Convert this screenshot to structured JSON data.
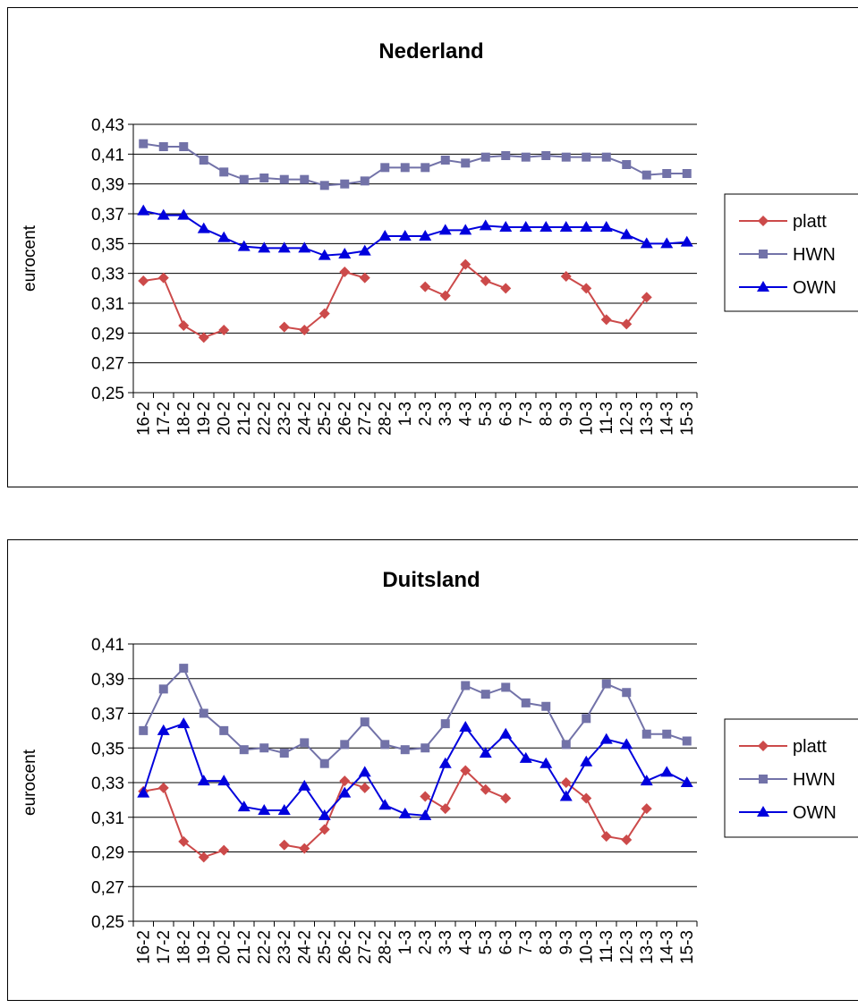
{
  "chart_data": [
    {
      "type": "line",
      "title": "Nederland",
      "ylabel": "eurocent",
      "xlabel": "",
      "ylim": [
        0.25,
        0.43
      ],
      "yticks": [
        "0,25",
        "0,27",
        "0,29",
        "0,31",
        "0,33",
        "0,35",
        "0,37",
        "0,39",
        "0,41",
        "0,43"
      ],
      "grid": true,
      "legend_position": "right",
      "categories": [
        "16-2",
        "17-2",
        "18-2",
        "19-2",
        "20-2",
        "21-2",
        "22-2",
        "23-2",
        "24-2",
        "25-2",
        "26-2",
        "27-2",
        "28-2",
        "1-3",
        "2-3",
        "3-3",
        "4-3",
        "5-3",
        "6-3",
        "7-3",
        "8-3",
        "9-3",
        "10-3",
        "11-3",
        "12-3",
        "13-3",
        "14-3",
        "15-3"
      ],
      "series": [
        {
          "name": "platt",
          "color": "#cc4a4a",
          "marker": "diamond",
          "values": [
            0.325,
            0.327,
            0.295,
            0.287,
            0.292,
            null,
            null,
            0.294,
            0.292,
            0.303,
            0.331,
            0.327,
            null,
            null,
            0.321,
            0.315,
            0.336,
            0.325,
            0.32,
            null,
            null,
            0.328,
            0.32,
            0.299,
            0.296,
            0.314,
            null,
            null
          ]
        },
        {
          "name": "HWN",
          "color": "#7272a8",
          "marker": "square",
          "values": [
            0.417,
            0.415,
            0.415,
            0.406,
            0.398,
            0.393,
            0.394,
            0.393,
            0.393,
            0.389,
            0.39,
            0.392,
            0.401,
            0.401,
            0.401,
            0.406,
            0.404,
            0.408,
            0.409,
            0.408,
            0.409,
            0.408,
            0.408,
            0.408,
            0.403,
            0.396,
            0.397,
            0.397
          ]
        },
        {
          "name": "OWN",
          "color": "#0000dd",
          "marker": "triangle",
          "values": [
            0.372,
            0.369,
            0.369,
            0.36,
            0.354,
            0.348,
            0.347,
            0.347,
            0.347,
            0.342,
            0.343,
            0.345,
            0.355,
            0.355,
            0.355,
            0.359,
            0.359,
            0.362,
            0.361,
            0.361,
            0.361,
            0.361,
            0.361,
            0.361,
            0.356,
            0.35,
            0.35,
            0.351
          ]
        }
      ]
    },
    {
      "type": "line",
      "title": "Duitsland",
      "ylabel": "eurocent",
      "xlabel": "",
      "ylim": [
        0.25,
        0.41
      ],
      "yticks": [
        "0,25",
        "0,27",
        "0,29",
        "0,31",
        "0,33",
        "0,35",
        "0,37",
        "0,39",
        "0,41"
      ],
      "grid": true,
      "legend_position": "right",
      "categories": [
        "16-2",
        "17-2",
        "18-2",
        "19-2",
        "20-2",
        "21-2",
        "22-2",
        "23-2",
        "24-2",
        "25-2",
        "26-2",
        "27-2",
        "28-2",
        "1-3",
        "2-3",
        "3-3",
        "4-3",
        "5-3",
        "6-3",
        "7-3",
        "8-3",
        "9-3",
        "10-3",
        "11-3",
        "12-3",
        "13-3",
        "14-3",
        "15-3"
      ],
      "series": [
        {
          "name": "platt",
          "color": "#cc4a4a",
          "marker": "diamond",
          "values": [
            0.325,
            0.327,
            0.296,
            0.287,
            0.291,
            null,
            null,
            0.294,
            0.292,
            0.303,
            0.331,
            0.327,
            null,
            null,
            0.322,
            0.315,
            0.337,
            0.326,
            0.321,
            null,
            null,
            0.33,
            0.321,
            0.299,
            0.297,
            0.315,
            null,
            null
          ]
        },
        {
          "name": "HWN",
          "color": "#7272a8",
          "marker": "square",
          "values": [
            0.36,
            0.384,
            0.396,
            0.37,
            0.36,
            0.349,
            0.35,
            0.347,
            0.353,
            0.341,
            0.352,
            0.365,
            0.352,
            0.349,
            0.35,
            0.364,
            0.386,
            0.381,
            0.385,
            0.376,
            0.374,
            0.352,
            0.367,
            0.387,
            0.382,
            0.358,
            0.358,
            0.354
          ]
        },
        {
          "name": "OWN",
          "color": "#0000dd",
          "marker": "triangle",
          "values": [
            0.324,
            0.36,
            0.364,
            0.331,
            0.331,
            0.316,
            0.314,
            0.314,
            0.328,
            0.311,
            0.324,
            0.336,
            0.317,
            0.312,
            0.311,
            0.341,
            0.362,
            0.347,
            0.358,
            0.344,
            0.341,
            0.322,
            0.342,
            0.355,
            0.352,
            0.331,
            0.336,
            0.33
          ]
        }
      ]
    }
  ]
}
